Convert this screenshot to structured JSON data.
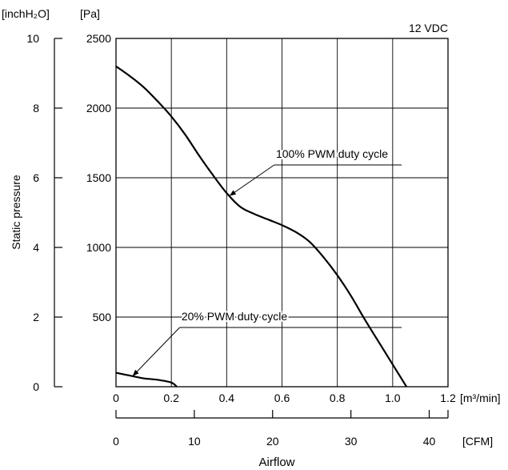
{
  "chart_data": {
    "type": "line",
    "note": "12 VDC",
    "ylabel": "Static pressure",
    "xlabel": "Airflow",
    "y_left_unit": "[inchH₂O]",
    "y_pa_unit": "[Pa]",
    "x_m3_unit": "[m³/min]",
    "x_cfm_unit": "[CFM]",
    "y_pa_ticks": [
      "2500",
      "2000",
      "1500",
      "1000",
      "500"
    ],
    "y_inch_ticks": [
      "10",
      "8",
      "6",
      "4",
      "2",
      "0"
    ],
    "x_m3_ticks": [
      "0",
      "0.2",
      "0.4",
      "0.6",
      "0.8",
      "1.0",
      "1.2"
    ],
    "x_cfm_ticks": [
      "0",
      "10",
      "20",
      "30",
      "40"
    ],
    "x_m3_range": [
      0,
      1.2
    ],
    "y_pa_range": [
      0,
      2500
    ],
    "y_inch_range": [
      0,
      10
    ],
    "x_cfm_range": [
      0,
      42.4
    ],
    "grid": true,
    "series": [
      {
        "name": "100% PWM duty cycle",
        "x": [
          0,
          0.05,
          0.1,
          0.15,
          0.2,
          0.25,
          0.3,
          0.35,
          0.4,
          0.45,
          0.5,
          0.55,
          0.6,
          0.65,
          0.7,
          0.75,
          0.8,
          0.85,
          0.9,
          0.95,
          1.0,
          1.05
        ],
        "y": [
          2300,
          2230,
          2150,
          2050,
          1940,
          1810,
          1660,
          1520,
          1390,
          1290,
          1240,
          1200,
          1160,
          1110,
          1040,
          930,
          800,
          650,
          480,
          320,
          160,
          0
        ]
      },
      {
        "name": "20% PWM duty cycle",
        "x": [
          0,
          0.05,
          0.1,
          0.15,
          0.2,
          0.22
        ],
        "y": [
          100,
          80,
          60,
          50,
          30,
          0
        ]
      }
    ]
  }
}
